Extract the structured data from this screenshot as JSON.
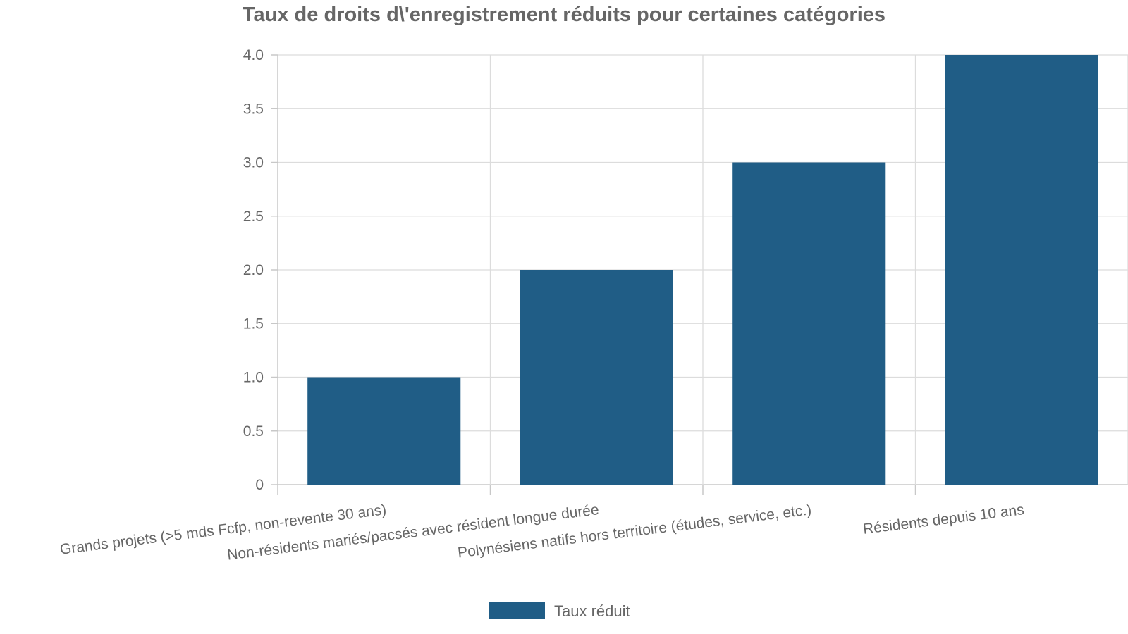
{
  "chart_data": {
    "type": "bar",
    "title": "Taux de droits d\\'enregistrement réduits pour certaines catégories",
    "xlabel": "",
    "ylabel": "",
    "categories": [
      "Grands projets (>5 mds Fcfp, non-revente 30 ans)",
      "Non-résidents mariés/pacsés avec résident longue durée",
      "Polynésiens natifs hors territoire (études, service, etc.)",
      "Résidents depuis 10 ans"
    ],
    "series": [
      {
        "name": "Taux réduit",
        "values": [
          1,
          2,
          3,
          4
        ],
        "color": "#205d86"
      }
    ],
    "ylim": [
      0,
      4
    ],
    "yticks": [
      0,
      0.5,
      1,
      1.5,
      2,
      2.5,
      3,
      3.5,
      4
    ],
    "ytick_labels": [
      "0",
      "0.5",
      "1.0",
      "1.5",
      "2.0",
      "2.5",
      "3.0",
      "3.5",
      "4.0"
    ],
    "grid": true,
    "legend_position": "bottom"
  }
}
